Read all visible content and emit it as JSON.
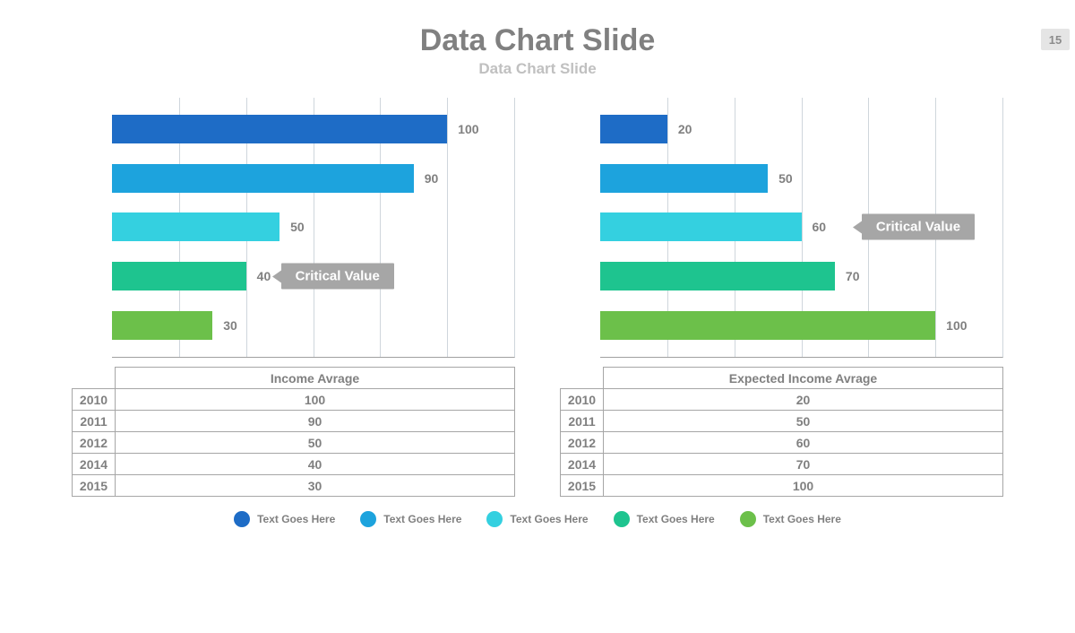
{
  "page_number": "15",
  "title": "Data Chart Slide",
  "subtitle": "Data Chart Slide",
  "colors": {
    "grid": "#cfd6dc",
    "border": "#a0a0a0",
    "text": "#808080",
    "callout_bg": "#a6a6a6",
    "callout_text": "#ffffff"
  },
  "series_colors": [
    "#1e6cc6",
    "#1da3dd",
    "#34d0e0",
    "#1ec48f",
    "#6cc04a"
  ],
  "panels": [
    {
      "table_title": "Income Avrage",
      "max_value": 120,
      "grid_count": 6,
      "callout": {
        "text": "Critical Value",
        "bar_index": 3,
        "x_percent": 42
      },
      "bars": [
        {
          "value": 100,
          "color": "#1e6cc6"
        },
        {
          "value": 90,
          "color": "#1da3dd"
        },
        {
          "value": 50,
          "color": "#34d0e0"
        },
        {
          "value": 40,
          "color": "#1ec48f"
        },
        {
          "value": 30,
          "color": "#6cc04a"
        }
      ],
      "years": [
        "2010",
        "2011",
        "2012",
        "2014",
        "2015"
      ]
    },
    {
      "table_title": "Expected Income Avrage",
      "max_value": 120,
      "grid_count": 6,
      "callout": {
        "text": "Critical Value",
        "bar_index": 2,
        "x_percent": 65
      },
      "bars": [
        {
          "value": 20,
          "color": "#1e6cc6"
        },
        {
          "value": 50,
          "color": "#1da3dd"
        },
        {
          "value": 60,
          "color": "#34d0e0"
        },
        {
          "value": 70,
          "color": "#1ec48f"
        },
        {
          "value": 100,
          "color": "#6cc04a"
        }
      ],
      "years": [
        "2010",
        "2011",
        "2012",
        "2014",
        "2015"
      ]
    }
  ],
  "legend": [
    {
      "color": "#1e6cc6",
      "label": "Text Goes Here"
    },
    {
      "color": "#1da3dd",
      "label": "Text Goes Here"
    },
    {
      "color": "#34d0e0",
      "label": "Text Goes Here"
    },
    {
      "color": "#1ec48f",
      "label": "Text Goes Here"
    },
    {
      "color": "#6cc04a",
      "label": "Text Goes Here"
    }
  ]
}
